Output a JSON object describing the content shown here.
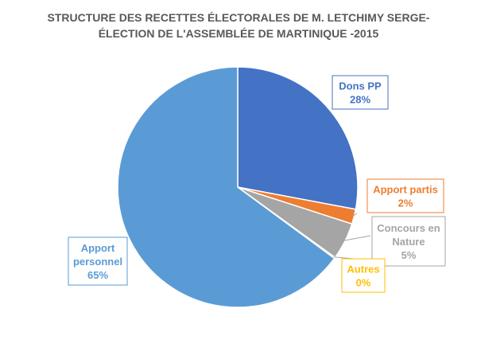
{
  "chart_data": {
    "type": "pie",
    "title": [
      "STRUCTURE DES RECETTES ÉLECTORALES DE M. LETCHIMY SERGE-",
      "ÉLECTION DE L'ASSEMBLÉE DE MARTINIQUE -2015"
    ],
    "slices": [
      {
        "label": [
          "Dons PP"
        ],
        "value_text": "28%",
        "value": 28,
        "color": "#4472c4",
        "label_color": "#4472c4"
      },
      {
        "label": [
          "Apport partis"
        ],
        "value_text": "2%",
        "value": 2,
        "color": "#ed7d31",
        "label_color": "#ed7d31"
      },
      {
        "label": [
          "Concours en",
          "Nature"
        ],
        "value_text": "5%",
        "value": 5,
        "color": "#a5a5a5",
        "label_color": "#a5a5a5"
      },
      {
        "label": [
          "Autres"
        ],
        "value_text": "0%",
        "value": 0.15,
        "color": "#ffc000",
        "label_color": "#ffc000"
      },
      {
        "label": [
          "Apport",
          "personnel"
        ],
        "value_text": "65%",
        "value": 65,
        "color": "#5b9bd5",
        "label_color": "#5b9bd5"
      }
    ]
  }
}
